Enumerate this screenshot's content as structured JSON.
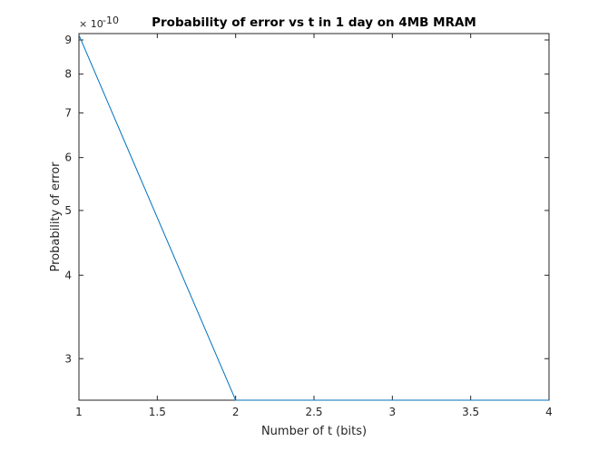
{
  "chart_data": {
    "type": "line",
    "title": "Probability of error vs t in 1 day on 4MB MRAM",
    "xlabel": "Number of t (bits)",
    "ylabel": "Probability of error",
    "y_scale": "log",
    "y_exponent_label": "× 10",
    "y_exponent_power": "-10",
    "xlim": [
      1,
      4
    ],
    "ylim": [
      2.6,
      9.2
    ],
    "x_ticks": [
      1,
      1.5,
      2,
      2.5,
      3,
      3.5,
      4
    ],
    "x_tick_labels": [
      "1",
      "1.5",
      "2",
      "2.5",
      "3",
      "3.5",
      "4"
    ],
    "y_ticks": [
      3,
      4,
      5,
      6,
      7,
      8,
      9
    ],
    "y_tick_labels": [
      "3",
      "4",
      "5",
      "6",
      "7",
      "8",
      "9"
    ],
    "grid": false,
    "series": [
      {
        "x": [
          1,
          2,
          3,
          4
        ],
        "y": [
          9.15,
          2.6,
          2.6,
          2.6
        ],
        "color": "#0072bd"
      }
    ]
  }
}
